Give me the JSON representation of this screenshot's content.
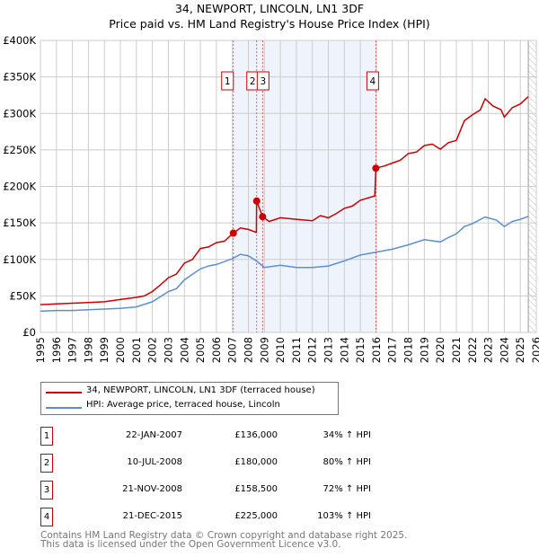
{
  "chart_data": {
    "type": "line",
    "title": "34, NEWPORT, LINCOLN, LN1 3DF",
    "subtitle": "Price paid vs. HM Land Registry's House Price Index (HPI)",
    "xlim": [
      1995,
      2026
    ],
    "ylim": [
      0,
      400000
    ],
    "x_ticks": [
      "1995",
      "1996",
      "1997",
      "1998",
      "1999",
      "2000",
      "2001",
      "2002",
      "2003",
      "2004",
      "2005",
      "2006",
      "2007",
      "2008",
      "2009",
      "2010",
      "2011",
      "2012",
      "2013",
      "2014",
      "2015",
      "2016",
      "2017",
      "2018",
      "2019",
      "2020",
      "2021",
      "2022",
      "2023",
      "2024",
      "2025",
      "2026"
    ],
    "y_ticks": [
      {
        "v": 0,
        "l": "£0"
      },
      {
        "v": 50000,
        "l": "£50K"
      },
      {
        "v": 100000,
        "l": "£100K"
      },
      {
        "v": 150000,
        "l": "£150K"
      },
      {
        "v": 200000,
        "l": "£200K"
      },
      {
        "v": 250000,
        "l": "£250K"
      },
      {
        "v": 300000,
        "l": "£300K"
      },
      {
        "v": 350000,
        "l": "£350K"
      },
      {
        "v": 400000,
        "l": "£400K"
      }
    ],
    "grid": true,
    "shaded_range": [
      2007.06,
      2015.97
    ],
    "forecast_from": 2025.5,
    "series": [
      {
        "name": "34, NEWPORT, LINCOLN, LN1 3DF (terraced house)",
        "color": "#cc0000",
        "x": [
          1995,
          1996,
          1997,
          1998,
          1999,
          2000,
          2001,
          2001.5,
          2002,
          2002.5,
          2003,
          2003.5,
          2004,
          2004.5,
          2005,
          2005.5,
          2006,
          2006.5,
          2007.06,
          2007.5,
          2008,
          2008.5,
          2008.52,
          2008.89,
          2009.3,
          2010,
          2011,
          2012,
          2012.5,
          2013,
          2013.5,
          2014,
          2014.5,
          2015,
          2015.9,
          2015.97,
          2016.5,
          2017,
          2017.5,
          2018,
          2018.5,
          2019,
          2019.5,
          2020,
          2020.5,
          2021,
          2021.5,
          2022,
          2022.5,
          2022.8,
          2023.3,
          2023.8,
          2024,
          2024.5,
          2025,
          2025.5
        ],
        "y": [
          38000,
          39000,
          40000,
          41000,
          42000,
          45000,
          48000,
          50000,
          56000,
          65000,
          75000,
          80000,
          95000,
          100000,
          115000,
          117000,
          123000,
          125000,
          136000,
          143000,
          141000,
          137000,
          180000,
          158500,
          152000,
          157000,
          155000,
          153000,
          160000,
          157000,
          163000,
          170000,
          173000,
          181000,
          187000,
          225000,
          228000,
          232000,
          236000,
          245000,
          247000,
          256000,
          258000,
          251000,
          260000,
          263000,
          290000,
          298000,
          305000,
          320000,
          310000,
          305000,
          295000,
          308000,
          313000,
          323000
        ]
      },
      {
        "name": "HPI: Average price, terraced house, Lincoln",
        "color": "#5b8fd4",
        "x": [
          1995,
          1996,
          1997,
          1998,
          1999,
          2000,
          2001,
          2002,
          2003,
          2003.5,
          2004,
          2005,
          2005.5,
          2006,
          2007,
          2007.5,
          2008,
          2008.5,
          2009,
          2010,
          2011,
          2012,
          2013,
          2014,
          2015,
          2016,
          2017,
          2018,
          2019,
          2020,
          2020.5,
          2021,
          2021.5,
          2022,
          2022.8,
          2023.5,
          2024,
          2024.5,
          2025,
          2025.5
        ],
        "y": [
          29000,
          30000,
          30000,
          31000,
          32000,
          33000,
          35000,
          42000,
          56000,
          60000,
          72000,
          87000,
          91000,
          93000,
          101000,
          107000,
          105000,
          98000,
          89000,
          92000,
          89000,
          89000,
          91000,
          98000,
          106000,
          110000,
          114000,
          120000,
          127000,
          124000,
          130000,
          135000,
          145000,
          149000,
          158000,
          154000,
          145000,
          152000,
          155000,
          159000
        ]
      }
    ],
    "sales": [
      {
        "n": "1",
        "x": 2007.06,
        "price": 136000,
        "date": "22-JAN-2007",
        "price_label": "£136,000",
        "hpi": "34% ↑ HPI"
      },
      {
        "n": "2",
        "x": 2008.52,
        "price": 180000,
        "date": "10-JUL-2008",
        "price_label": "£180,000",
        "hpi": "80% ↑ HPI"
      },
      {
        "n": "3",
        "x": 2008.89,
        "price": 158500,
        "date": "21-NOV-2008",
        "price_label": "£158,500",
        "hpi": "72% ↑ HPI"
      },
      {
        "n": "4",
        "x": 2015.97,
        "price": 225000,
        "date": "21-DEC-2015",
        "price_label": "£225,000",
        "hpi": "103% ↑ HPI"
      }
    ]
  },
  "footer": {
    "line1": "Contains HM Land Registry data © Crown copyright and database right 2025.",
    "line2": "This data is licensed under the Open Government Licence v3.0."
  }
}
